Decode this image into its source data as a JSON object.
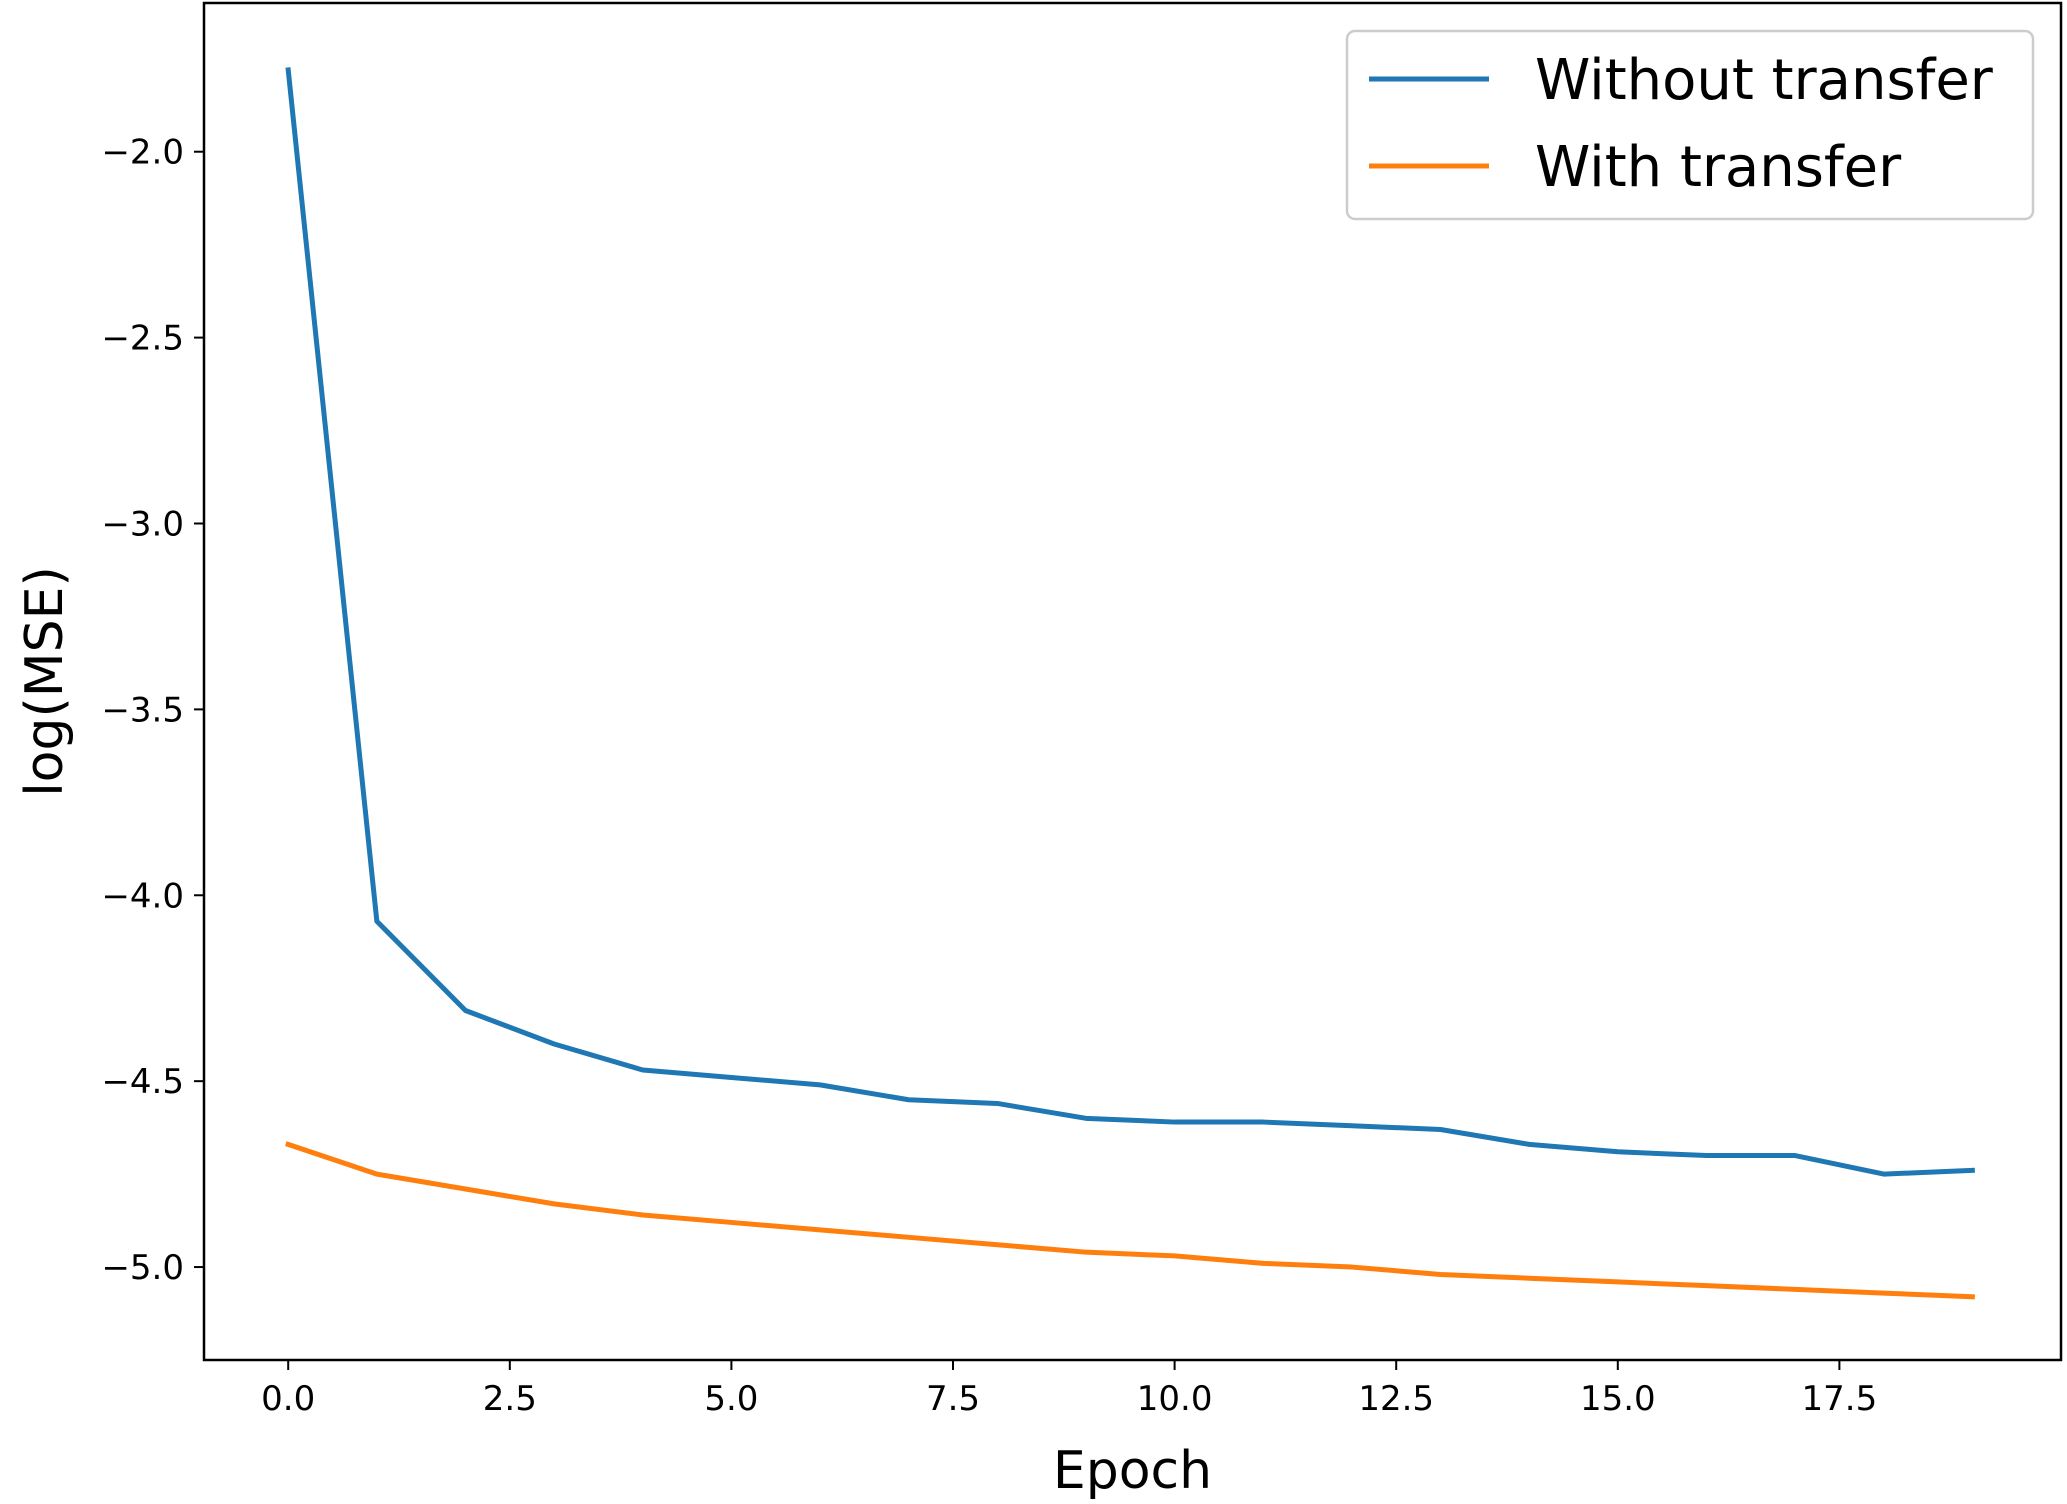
{
  "chart_data": {
    "type": "line",
    "title": "",
    "xlabel": "Epoch",
    "ylabel": "log(MSE)",
    "xlim": [
      -0.95,
      20.0
    ],
    "ylim": [
      -5.25,
      -1.6
    ],
    "xticks": [
      0.0,
      2.5,
      5.0,
      7.5,
      10.0,
      12.5,
      15.0,
      17.5
    ],
    "xtick_labels": [
      "0.0",
      "2.5",
      "5.0",
      "7.5",
      "10.0",
      "12.5",
      "15.0",
      "17.5"
    ],
    "yticks": [
      -2.0,
      -2.5,
      -3.0,
      -3.5,
      -4.0,
      -4.5,
      -5.0
    ],
    "ytick_labels": [
      "−2.0",
      "−2.5",
      "−3.0",
      "−3.5",
      "−4.0",
      "−4.5",
      "−5.0"
    ],
    "grid": false,
    "legend_position": "top-right",
    "x": [
      0,
      1,
      2,
      3,
      4,
      5,
      6,
      7,
      8,
      9,
      10,
      11,
      12,
      13,
      14,
      15,
      16,
      17,
      18,
      19
    ],
    "series": [
      {
        "name": "Without transfer",
        "color": "#1f77b4",
        "values": [
          -1.78,
          -4.07,
          -4.31,
          -4.4,
          -4.47,
          -4.49,
          -4.51,
          -4.55,
          -4.56,
          -4.6,
          -4.61,
          -4.61,
          -4.62,
          -4.63,
          -4.67,
          -4.69,
          -4.7,
          -4.7,
          -4.75,
          -4.74
        ]
      },
      {
        "name": "With transfer",
        "color": "#ff7f0e",
        "values": [
          -4.67,
          -4.75,
          -4.79,
          -4.83,
          -4.86,
          -4.88,
          -4.9,
          -4.92,
          -4.94,
          -4.96,
          -4.97,
          -4.99,
          -5.0,
          -5.02,
          -5.03,
          -5.04,
          -5.05,
          -5.06,
          -5.07,
          -5.08
        ]
      }
    ]
  }
}
